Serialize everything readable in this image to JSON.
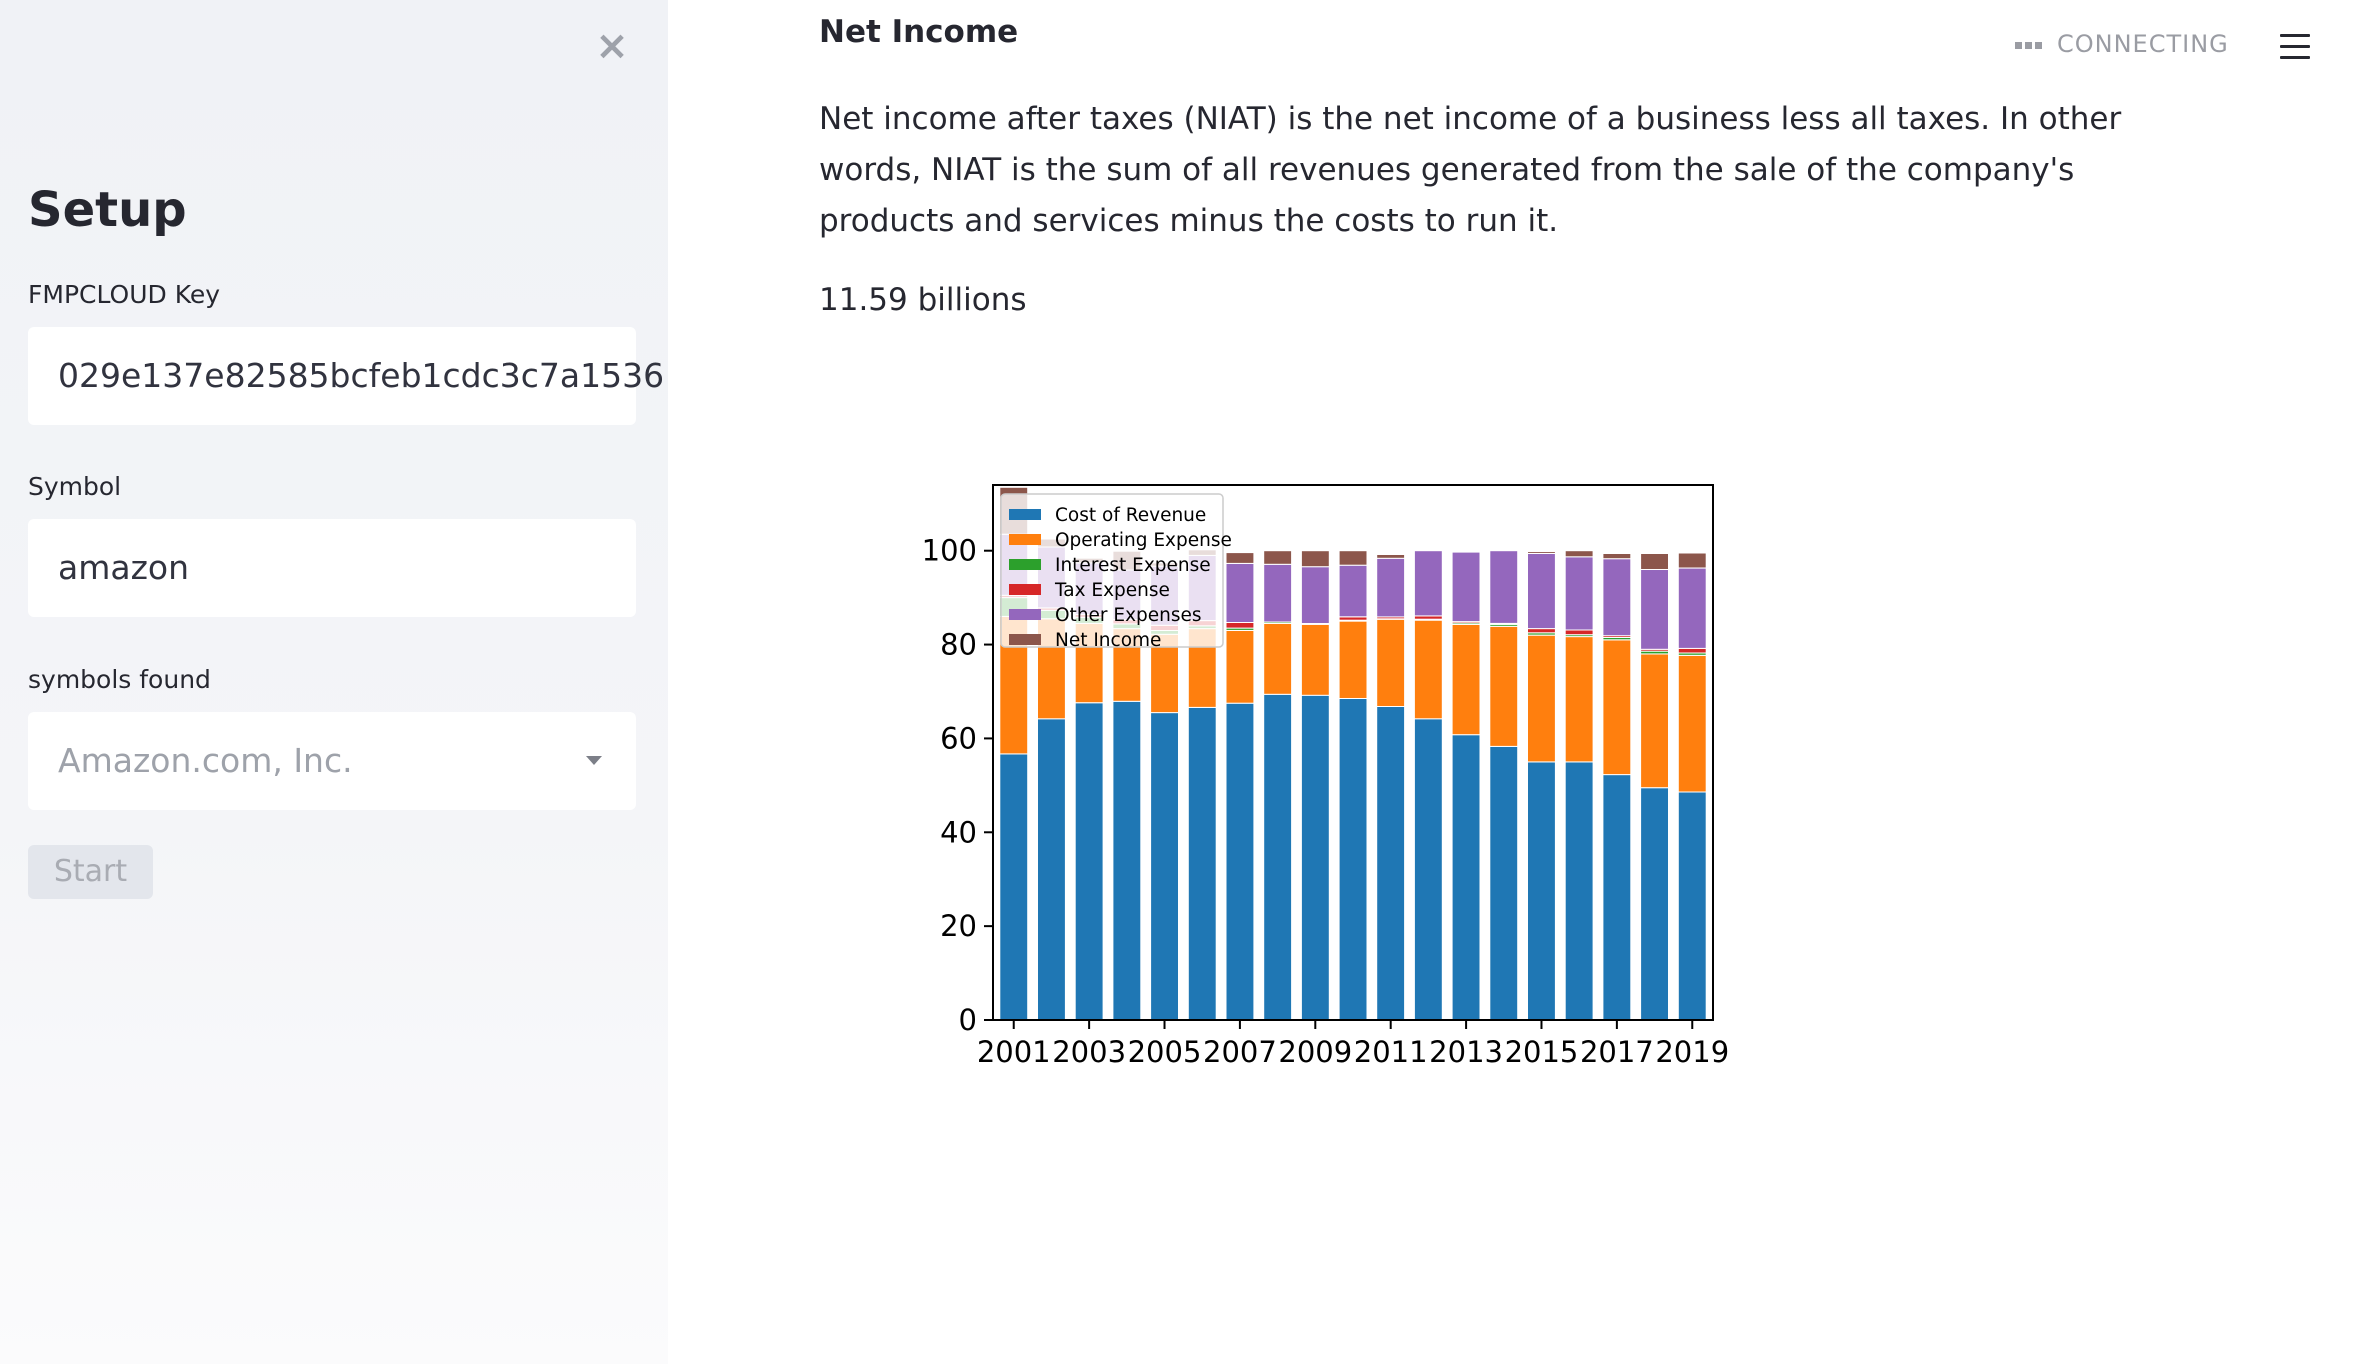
{
  "sidebar": {
    "close_glyph": "×",
    "title": "Setup",
    "key_label": "FMPCLOUD Key",
    "key_value": "029e137e82585bcfeb1cdc3c7a1536",
    "symbol_label": "Symbol",
    "symbol_value": "amazon",
    "found_label": "symbols found",
    "found_value": "Amazon.com, Inc.",
    "start_label": "Start"
  },
  "header": {
    "status": "CONNECTING"
  },
  "main": {
    "title": "Net Income",
    "description": "Net income after taxes (NIAT) is the net income of a business less all taxes. In other words, NIAT is the sum of all revenues generated from the sale of the company's products and services minus the costs to run it.",
    "value": "11.59 billions"
  },
  "chart_data": {
    "type": "bar",
    "stacked": true,
    "categories": [
      "2001",
      "2002",
      "2003",
      "2004",
      "2005",
      "2006",
      "2007",
      "2008",
      "2009",
      "2010",
      "2011",
      "2012",
      "2013",
      "2014",
      "2015",
      "2016",
      "2017",
      "2018",
      "2019"
    ],
    "xticks": [
      "2001",
      "2003",
      "2005",
      "2007",
      "2009",
      "2011",
      "2013",
      "2015",
      "2017",
      "2019"
    ],
    "yticks": [
      0,
      20,
      40,
      60,
      80,
      100
    ],
    "ylim": [
      0,
      114
    ],
    "legend_position": "top-left",
    "series": [
      {
        "name": "Cost of Revenue",
        "color": "#1f77b4",
        "values": [
          56.7,
          64.2,
          67.6,
          67.9,
          65.5,
          66.6,
          67.5,
          69.4,
          69.2,
          68.5,
          66.8,
          64.2,
          60.8,
          58.3,
          55.0,
          55.0,
          52.3,
          49.5,
          48.6
        ]
      },
      {
        "name": "Operating Expense",
        "color": "#ff7f0e",
        "values": [
          29.3,
          21.3,
          16.9,
          15.5,
          16.7,
          16.8,
          15.5,
          15.1,
          15.1,
          16.5,
          18.6,
          21.0,
          23.5,
          25.6,
          27.0,
          26.7,
          28.7,
          28.5,
          29.1
        ]
      },
      {
        "name": "Interest Expense",
        "color": "#2ca02c",
        "values": [
          4.0,
          1.8,
          1.3,
          1.0,
          0.8,
          0.6,
          0.5,
          0.3,
          0.2,
          0.2,
          0.1,
          0.2,
          0.3,
          0.4,
          0.5,
          0.4,
          0.5,
          0.6,
          0.5
        ]
      },
      {
        "name": "Tax Expense",
        "color": "#d62728",
        "values": [
          0.5,
          0.5,
          0.6,
          0.9,
          1.1,
          1.1,
          1.2,
          0.0,
          0.0,
          0.7,
          0.4,
          0.7,
          0.3,
          0.2,
          0.9,
          1.0,
          0.4,
          0.4,
          1.0
        ]
      },
      {
        "name": "Other Expenses",
        "color": "#9467bd",
        "values": [
          13.0,
          13.0,
          11.0,
          10.6,
          12.6,
          13.9,
          12.6,
          12.3,
          12.1,
          11.0,
          12.5,
          13.9,
          14.8,
          15.5,
          16.0,
          15.6,
          16.4,
          17.0,
          17.1
        ]
      },
      {
        "name": "Net Income",
        "color": "#8c564b",
        "values": [
          10.0,
          1.7,
          1.0,
          4.0,
          0.7,
          1.2,
          2.3,
          2.9,
          3.4,
          3.1,
          0.8,
          0.0,
          0.0,
          0.0,
          0.4,
          1.3,
          1.1,
          3.4,
          3.2
        ]
      }
    ]
  }
}
